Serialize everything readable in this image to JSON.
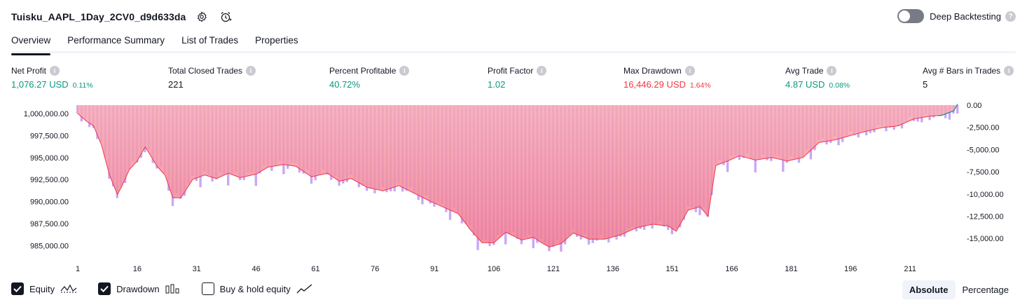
{
  "header": {
    "title": "Tuisku_AAPL_1Day_2CV0_d9d633da",
    "settings_icon": "gear-icon",
    "alert_icon": "alarm-clock-icon"
  },
  "deep_backtesting": {
    "label": "Deep Backtesting",
    "enabled": false
  },
  "tabs": [
    {
      "label": "Overview",
      "active": true
    },
    {
      "label": "Performance Summary",
      "active": false
    },
    {
      "label": "List of Trades",
      "active": false
    },
    {
      "label": "Properties",
      "active": false
    }
  ],
  "metrics": [
    {
      "label": "Net Profit",
      "value": "1,076.27 USD",
      "pct": "0.11%",
      "tone": "green"
    },
    {
      "label": "Total Closed Trades",
      "value": "221",
      "pct": "",
      "tone": "dark"
    },
    {
      "label": "Percent Profitable",
      "value": "40.72%",
      "pct": "",
      "tone": "green"
    },
    {
      "label": "Profit Factor",
      "value": "1.02",
      "pct": "",
      "tone": "green"
    },
    {
      "label": "Max Drawdown",
      "value": "16,446.29 USD",
      "pct": "1.64%",
      "tone": "red"
    },
    {
      "label": "Avg Trade",
      "value": "4.87 USD",
      "pct": "0.08%",
      "tone": "green"
    },
    {
      "label": "Avg # Bars in Trades",
      "value": "5",
      "pct": "",
      "tone": "dark"
    }
  ],
  "colors": {
    "equity_line": "#f23645",
    "equity_up_line": "#089981",
    "equity_fill_top": "#f7a9b4",
    "equity_fill_bottom": "#f07a92",
    "drawdown_bar": "#c9a8f7",
    "buyhold_bar": "#fbd3d0"
  },
  "chart_data": {
    "type": "area",
    "title": "",
    "xlabel": "",
    "ylabel_left": "",
    "ylabel_right": "",
    "x_ticks": [
      "1",
      "16",
      "31",
      "46",
      "61",
      "76",
      "91",
      "106",
      "121",
      "136",
      "151",
      "166",
      "181",
      "196",
      "211"
    ],
    "x_range": [
      1,
      223
    ],
    "y_left_ticks": [
      "1,000,000.00",
      "997,500.00",
      "995,000.00",
      "992,500.00",
      "990,000.00",
      "987,500.00",
      "985,000.00"
    ],
    "y_left_range": [
      984000,
      1001000
    ],
    "y_right_ticks": [
      "0.00",
      "-2,500.00",
      "-5,000.00",
      "-7,500.00",
      "-10,000.00",
      "-12,500.00",
      "-15,000.00"
    ],
    "y_right_range": [
      -16500,
      0
    ],
    "equity_keypoints": [
      [
        1,
        1000000
      ],
      [
        3,
        999200
      ],
      [
        5,
        998600
      ],
      [
        7,
        996400
      ],
      [
        9,
        993000
      ],
      [
        11,
        990800
      ],
      [
        12,
        991600
      ],
      [
        14,
        993600
      ],
      [
        16,
        994600
      ],
      [
        18,
        996200
      ],
      [
        19,
        995500
      ],
      [
        21,
        994000
      ],
      [
        23,
        993000
      ],
      [
        25,
        990400
      ],
      [
        27,
        990400
      ],
      [
        30,
        992500
      ],
      [
        33,
        993000
      ],
      [
        36,
        992600
      ],
      [
        39,
        993200
      ],
      [
        42,
        992700
      ],
      [
        46,
        993100
      ],
      [
        49,
        993900
      ],
      [
        53,
        994200
      ],
      [
        56,
        994000
      ],
      [
        60,
        992800
      ],
      [
        64,
        993200
      ],
      [
        67,
        992300
      ],
      [
        70,
        992600
      ],
      [
        74,
        991600
      ],
      [
        78,
        991200
      ],
      [
        82,
        991800
      ],
      [
        86,
        990900
      ],
      [
        90,
        990000
      ],
      [
        94,
        989200
      ],
      [
        97,
        988600
      ],
      [
        100,
        986800
      ],
      [
        103,
        985300
      ],
      [
        106,
        985300
      ],
      [
        109,
        986500
      ],
      [
        113,
        985600
      ],
      [
        116,
        985900
      ],
      [
        118,
        985300
      ],
      [
        120,
        984800
      ],
      [
        123,
        985200
      ],
      [
        126,
        986400
      ],
      [
        130,
        985700
      ],
      [
        134,
        985700
      ],
      [
        138,
        986200
      ],
      [
        142,
        987000
      ],
      [
        146,
        987400
      ],
      [
        150,
        987200
      ],
      [
        152,
        986600
      ],
      [
        155,
        989000
      ],
      [
        158,
        989400
      ],
      [
        160,
        988300
      ],
      [
        162,
        994100
      ],
      [
        165,
        994600
      ],
      [
        168,
        995200
      ],
      [
        172,
        994700
      ],
      [
        176,
        995000
      ],
      [
        180,
        994600
      ],
      [
        184,
        995000
      ],
      [
        188,
        996700
      ],
      [
        192,
        997000
      ],
      [
        196,
        997500
      ],
      [
        200,
        998000
      ],
      [
        204,
        998400
      ],
      [
        208,
        998600
      ],
      [
        212,
        999400
      ],
      [
        216,
        999700
      ],
      [
        219,
        999800
      ],
      [
        222,
        1000300
      ],
      [
        223,
        1001076
      ]
    ]
  },
  "legend": [
    {
      "label": "Equity",
      "checked": true,
      "icon": "equity-line-icon"
    },
    {
      "label": "Drawdown",
      "checked": true,
      "icon": "drawdown-bars-icon"
    },
    {
      "label": "Buy & hold equity",
      "checked": false,
      "icon": "trend-line-icon"
    }
  ],
  "view_mode": {
    "options": [
      "Absolute",
      "Percentage"
    ],
    "selected": "Absolute"
  }
}
